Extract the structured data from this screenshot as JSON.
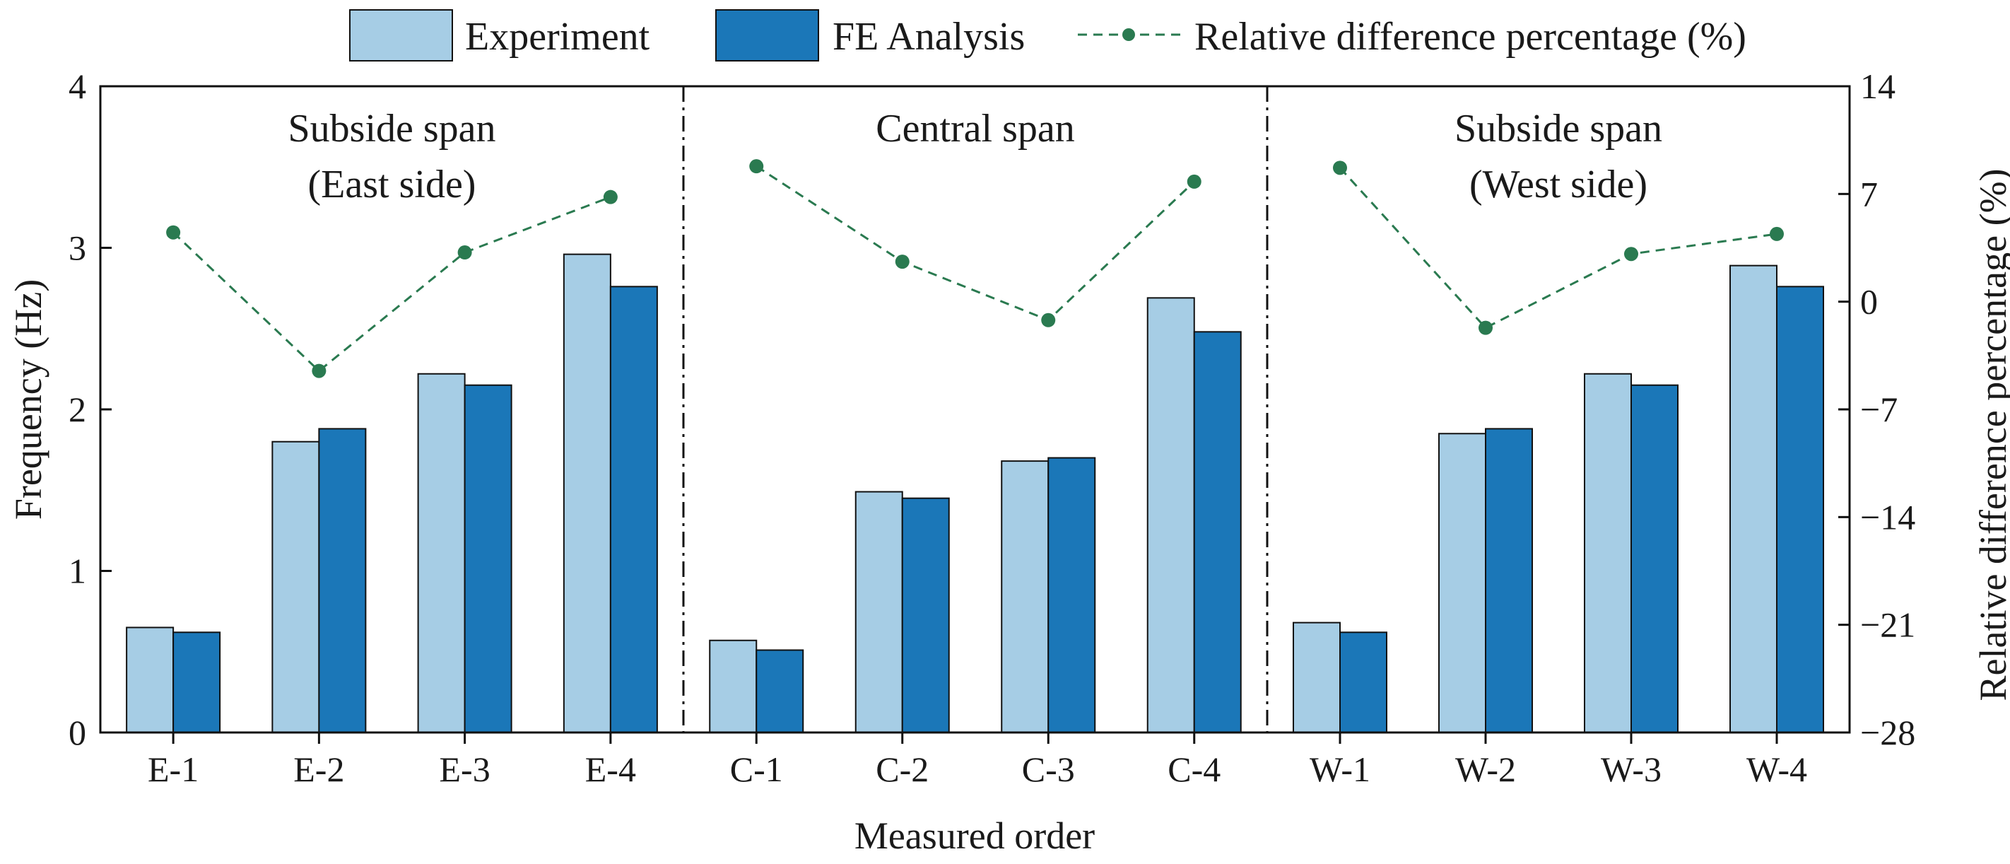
{
  "chart_data": {
    "type": "bar",
    "title": "",
    "xlabel": "Measured order",
    "ylabel": "Frequency (Hz)",
    "y2label": "Relative difference percentage (%)",
    "ylim": [
      0,
      4
    ],
    "y2lim": [
      -28,
      14
    ],
    "yticks": [
      "0",
      "1",
      "2",
      "3",
      "4"
    ],
    "y2ticks": [
      "−28",
      "−21",
      "−14",
      "−7",
      "0",
      "7",
      "14"
    ],
    "grid": false,
    "legend_position": "top",
    "categories": [
      "E-1",
      "E-2",
      "E-3",
      "E-4",
      "C-1",
      "C-2",
      "C-3",
      "C-4",
      "W-1",
      "W-2",
      "W-3",
      "W-4"
    ],
    "series": [
      {
        "name": "Experiment",
        "kind": "bar",
        "color": "#a6cde5",
        "values": [
          0.65,
          1.8,
          2.22,
          2.96,
          0.57,
          1.49,
          1.68,
          2.69,
          0.68,
          1.85,
          2.22,
          2.89
        ]
      },
      {
        "name": "FE Analysis",
        "kind": "bar",
        "color": "#1b77b8",
        "values": [
          0.62,
          1.88,
          2.15,
          2.76,
          0.51,
          1.45,
          1.7,
          2.48,
          0.62,
          1.88,
          2.15,
          2.76
        ]
      },
      {
        "name": "Relative difference percentage (%)",
        "kind": "line",
        "axis": "right",
        "color": "#2a7a50",
        "style": "dashed",
        "values": [
          4.5,
          -4.5,
          3.2,
          6.8,
          8.8,
          2.6,
          -1.2,
          7.8,
          8.7,
          -1.7,
          3.1,
          4.4
        ]
      }
    ],
    "groups": [
      {
        "lines": [
          "Subside span",
          "(East side)"
        ]
      },
      {
        "lines": [
          "Central span"
        ]
      },
      {
        "lines": [
          "Subside span",
          "(West side)"
        ]
      }
    ]
  }
}
